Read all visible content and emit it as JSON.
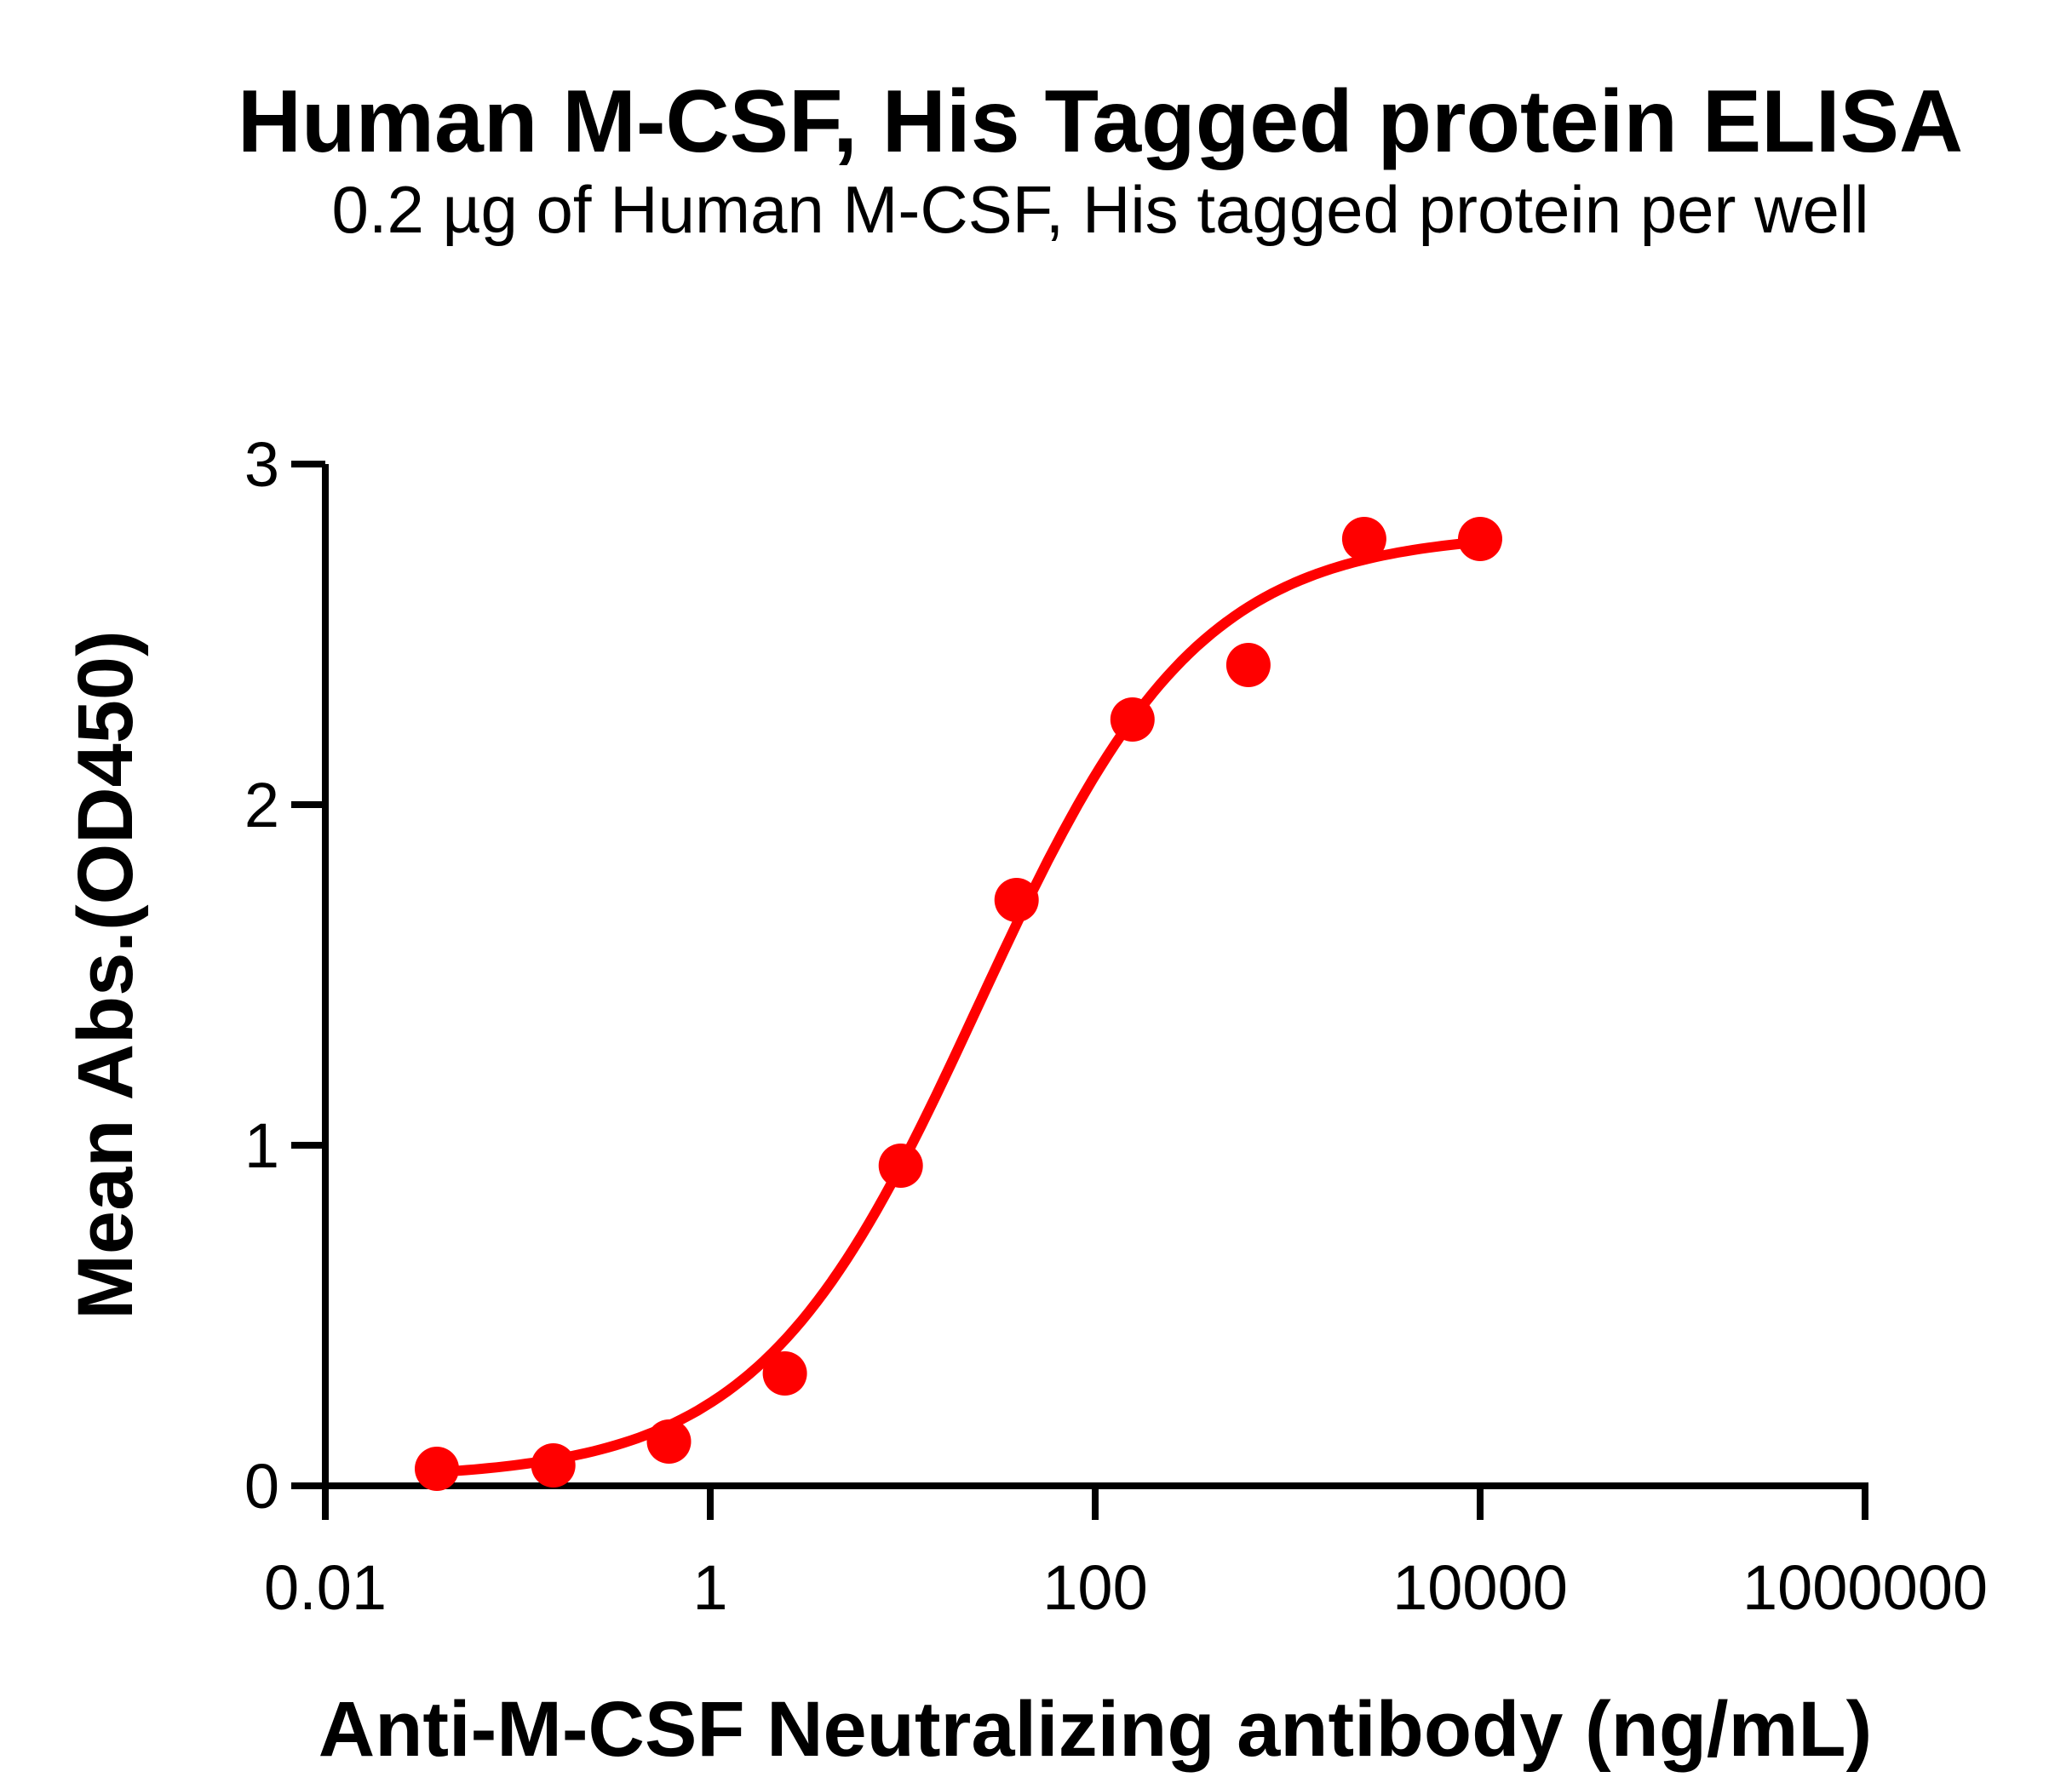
{
  "chart_data": {
    "type": "scatter",
    "title": "Human M-CSF, His Tagged protein ELISA",
    "subtitle": "0.2 µg of Human M-CSF, His tagged protein per well",
    "xlabel": "Anti-M-CSF Neutralizing antibody (ng/mL)",
    "ylabel": "Mean Abs.(OD450)",
    "x_scale": "log10",
    "xlim": [
      0.01,
      1000000
    ],
    "ylim": [
      0,
      3
    ],
    "x_tick_values": [
      0.01,
      1,
      100,
      10000,
      1000000
    ],
    "x_tick_labels": [
      "0.01",
      "1",
      "100",
      "10000",
      "1000000"
    ],
    "y_tick_values": [
      0,
      1,
      2,
      3
    ],
    "y_tick_labels": [
      "0",
      "1",
      "2",
      "3"
    ],
    "grid": false,
    "legend": "none",
    "series": [
      {
        "name": "Anti-M-CSF Neutralizing antibody",
        "color": "#FF0000",
        "marker": "circle",
        "x": [
          0.038,
          0.153,
          0.61,
          2.44,
          9.77,
          39.06,
          156.25,
          625,
          2500,
          10000
        ],
        "y": [
          0.05,
          0.06,
          0.13,
          0.33,
          0.94,
          1.72,
          2.25,
          2.41,
          2.78,
          2.78
        ]
      }
    ],
    "fit_curve": {
      "model": "4PL",
      "bottom": 0.02,
      "top": 2.8,
      "ec50": 24.7,
      "hill": 0.76,
      "x_range": [
        0.038,
        10000
      ],
      "color": "#FF0000"
    }
  },
  "colors": {
    "accent": "#FF0000",
    "axis": "#000000",
    "background": "#FFFFFF"
  }
}
